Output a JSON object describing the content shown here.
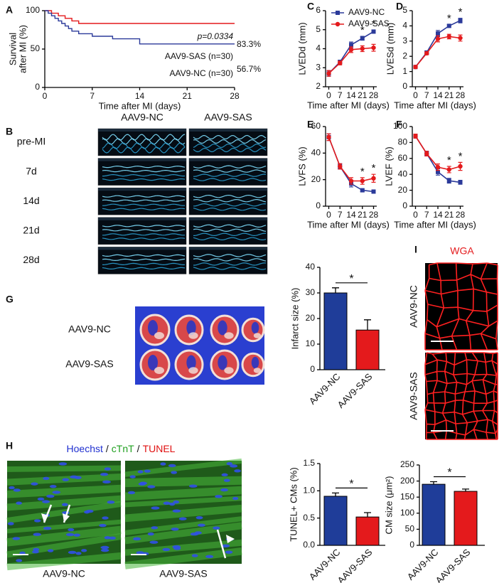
{
  "chart_data": [
    {
      "panel": "A",
      "type": "line",
      "ylabel": [
        "Survival",
        "after MI (%)"
      ],
      "xlabel": "Time after MI (days)",
      "xlim": [
        0,
        28
      ],
      "xticks": [
        0,
        7,
        14,
        21,
        28
      ],
      "ylim": [
        0,
        100
      ],
      "yticks": [
        0,
        50,
        100
      ],
      "series": [
        {
          "name": "AAV9-SAS (n=30)",
          "color": "#e41a1c",
          "x": [
            0,
            1,
            1,
            2,
            2,
            3,
            3,
            4,
            4,
            5,
            5,
            28
          ],
          "values": [
            100,
            100,
            96.7,
            96.7,
            93.3,
            93.3,
            90,
            90,
            86.7,
            86.7,
            83.3,
            83.3
          ]
        },
        {
          "name": "AAV9-NC (n=30)",
          "color": "#2b3a9a",
          "x": [
            0,
            0.5,
            0.5,
            1,
            1,
            1.5,
            1.5,
            2,
            2,
            2.5,
            2.5,
            3,
            3,
            3.5,
            3.5,
            4,
            4,
            5,
            5,
            7,
            7,
            10,
            10,
            14,
            14,
            28
          ],
          "values": [
            100,
            100,
            96.7,
            96.7,
            93.3,
            93.3,
            90,
            90,
            86.7,
            86.7,
            83.3,
            83.3,
            80,
            80,
            76.7,
            76.7,
            73.3,
            73.3,
            70,
            70,
            66.7,
            66.7,
            63.3,
            63.3,
            56.7,
            56.7
          ]
        }
      ],
      "annotations": [
        "p=0.0334",
        "83.3%",
        "56.7%"
      ]
    },
    {
      "panel": "C",
      "type": "line",
      "ylabel": "LVEDd (mm)",
      "xlabel": "Time after MI (days)",
      "legend": true,
      "x": [
        0,
        7,
        14,
        21,
        28
      ],
      "xlim": [
        -2,
        30
      ],
      "xticks": [
        0,
        7,
        14,
        21,
        28
      ],
      "ylim": [
        2,
        6
      ],
      "yticks": [
        2,
        3,
        4,
        5,
        6
      ],
      "series": [
        {
          "name": "AAV9-NC",
          "color": "#2b3a9a",
          "marker": "square",
          "values": [
            2.7,
            3.3,
            4.2,
            4.55,
            4.9
          ],
          "error": [
            0.15,
            0.1,
            0.15,
            0.1,
            0.08
          ]
        },
        {
          "name": "AAV9-SAS",
          "color": "#e41a1c",
          "marker": "circle",
          "values": [
            2.7,
            3.25,
            3.95,
            4.0,
            4.05
          ],
          "error": [
            0.15,
            0.1,
            0.15,
            0.15,
            0.18
          ]
        }
      ],
      "stars": [
        null,
        null,
        null,
        "*",
        "*"
      ]
    },
    {
      "panel": "D",
      "type": "line",
      "ylabel": "LVESd (mm)",
      "xlabel": "Time after MI (days)",
      "x": [
        0,
        7,
        14,
        21,
        28
      ],
      "xlim": [
        -2,
        30
      ],
      "xticks": [
        0,
        7,
        14,
        21,
        28
      ],
      "ylim": [
        0,
        5
      ],
      "yticks": [
        0,
        1,
        2,
        3,
        4,
        5
      ],
      "series": [
        {
          "color": "#2b3a9a",
          "marker": "square",
          "values": [
            1.3,
            2.25,
            3.5,
            4.0,
            4.35
          ],
          "error": [
            0.1,
            0.1,
            0.2,
            0.08,
            0.15
          ]
        },
        {
          "color": "#e41a1c",
          "marker": "circle",
          "values": [
            1.3,
            2.2,
            3.15,
            3.3,
            3.2
          ],
          "error": [
            0.1,
            0.1,
            0.2,
            0.15,
            0.2
          ]
        }
      ],
      "stars": [
        null,
        null,
        null,
        "*",
        "*"
      ]
    },
    {
      "panel": "E",
      "type": "line",
      "ylabel": "LVFS (%)",
      "xlabel": "Time after MI (days)",
      "x": [
        0,
        7,
        14,
        21,
        28
      ],
      "xlim": [
        -2,
        30
      ],
      "xticks": [
        0,
        7,
        14,
        21,
        28
      ],
      "ylim": [
        0,
        60
      ],
      "yticks": [
        0,
        20,
        40,
        60
      ],
      "series": [
        {
          "color": "#2b3a9a",
          "marker": "square",
          "values": [
            52,
            30,
            17,
            12,
            11
          ],
          "error": [
            2.5,
            2,
            2.5,
            1,
            1
          ]
        },
        {
          "color": "#e41a1c",
          "marker": "circle",
          "values": [
            52,
            30,
            19,
            19,
            21
          ],
          "error": [
            2.5,
            2,
            2.5,
            2.5,
            3
          ]
        }
      ],
      "stars": [
        null,
        null,
        null,
        "*",
        "*"
      ]
    },
    {
      "panel": "F",
      "type": "line",
      "ylabel": "LVEF (%)",
      "xlabel": "Time after MI (days)",
      "x": [
        0,
        7,
        14,
        21,
        28
      ],
      "xlim": [
        -2,
        30
      ],
      "xticks": [
        0,
        7,
        14,
        21,
        28
      ],
      "ylim": [
        0,
        100
      ],
      "yticks": [
        0,
        20,
        40,
        60,
        80,
        100
      ],
      "series": [
        {
          "color": "#2b3a9a",
          "marker": "square",
          "values": [
            88,
            66,
            43,
            32,
            30
          ],
          "error": [
            2.5,
            3,
            4,
            3,
            2.5
          ]
        },
        {
          "color": "#e41a1c",
          "marker": "circle",
          "values": [
            88,
            66,
            49,
            46,
            50
          ],
          "error": [
            2.5,
            3,
            4,
            4,
            5
          ]
        }
      ],
      "stars": [
        null,
        null,
        null,
        "*",
        "*"
      ]
    },
    {
      "type": "bar",
      "ylabel": "Infarct size (%)",
      "categories": [
        "AAV9-NC",
        "AAV9-SAS"
      ],
      "values": [
        30,
        15.5
      ],
      "error": [
        2,
        4
      ],
      "colors": [
        "#1f3d99",
        "#e41a1c"
      ],
      "ylim": [
        0,
        40
      ],
      "yticks": [
        0,
        10,
        20,
        30,
        40
      ],
      "significance": "*"
    },
    {
      "type": "bar",
      "ylabel": "TUNEL+ CMs (%)",
      "categories": [
        "AAV9-NC",
        "AAV9-SAS"
      ],
      "values": [
        0.9,
        0.52
      ],
      "error": [
        0.06,
        0.08
      ],
      "colors": [
        "#1f3d99",
        "#e41a1c"
      ],
      "ylim": [
        0,
        1.5
      ],
      "yticks": [
        {
          "value": 0,
          "label": "0.0"
        },
        0.5,
        {
          "value": 1,
          "label": "1.0"
        },
        1.5
      ],
      "significance": "*"
    },
    {
      "type": "bar",
      "ylabel": "CM size (μm²)",
      "categories": [
        "AAV9-NC",
        "AAV9-SAS"
      ],
      "values": [
        190,
        168
      ],
      "error": [
        8,
        7
      ],
      "colors": [
        "#1f3d99",
        "#e41a1c"
      ],
      "ylim": [
        0,
        250
      ],
      "yticks": [
        0,
        50,
        100,
        150,
        200,
        250
      ],
      "significance": "*"
    }
  ],
  "figure": {
    "echo": {
      "panel": "B",
      "columns": [
        "AAV9-NC",
        "AAV9-SAS"
      ],
      "rows": [
        "pre-MI",
        "7d",
        "14d",
        "21d",
        "28d"
      ]
    },
    "slices": {
      "panel": "G",
      "rows": [
        "AAV9-NC",
        "AAV9-SAS"
      ]
    },
    "tunel": {
      "panel": "H",
      "stains": [
        {
          "text": "Hoechst",
          "color": "#2030d0"
        },
        {
          "text": "cTnT",
          "color": "#20a020"
        },
        {
          "text": "TUNEL",
          "color": "#e01010"
        }
      ],
      "separator": "/",
      "captions": [
        "AAV9-NC",
        "AAV9-SAS"
      ]
    },
    "wga": {
      "panel": "I",
      "stain": "WGA",
      "stain_color": "#e41a1c",
      "rows": [
        "AAV9-NC",
        "AAV9-SAS"
      ]
    }
  }
}
